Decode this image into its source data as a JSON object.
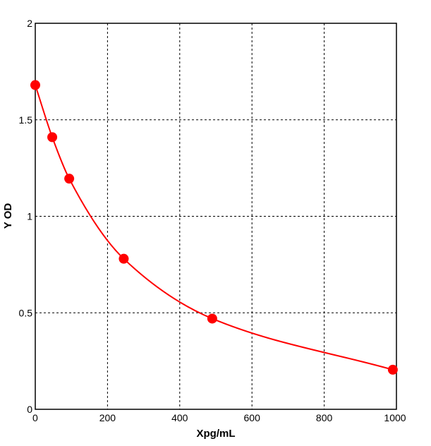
{
  "chart_data": {
    "type": "scatter",
    "title": "",
    "xlabel": "Xpg/mL",
    "ylabel": "Y OD",
    "xlim": [
      0,
      1000
    ],
    "ylim": [
      0,
      2
    ],
    "x_ticks": [
      "0",
      "200",
      "400",
      "600",
      "800",
      "1000"
    ],
    "y_ticks": [
      "0",
      "0.5",
      "1",
      "1.5",
      "2"
    ],
    "grid": true,
    "grid_style": "dashed",
    "series": [
      {
        "color": "#ff0000",
        "points": [
          {
            "x": 0,
            "y": 1.68
          },
          {
            "x": 47,
            "y": 1.41
          },
          {
            "x": 94,
            "y": 1.195
          },
          {
            "x": 245,
            "y": 0.78
          },
          {
            "x": 490,
            "y": 0.47
          },
          {
            "x": 990,
            "y": 0.205
          }
        ],
        "fit_curve": true
      }
    ]
  }
}
